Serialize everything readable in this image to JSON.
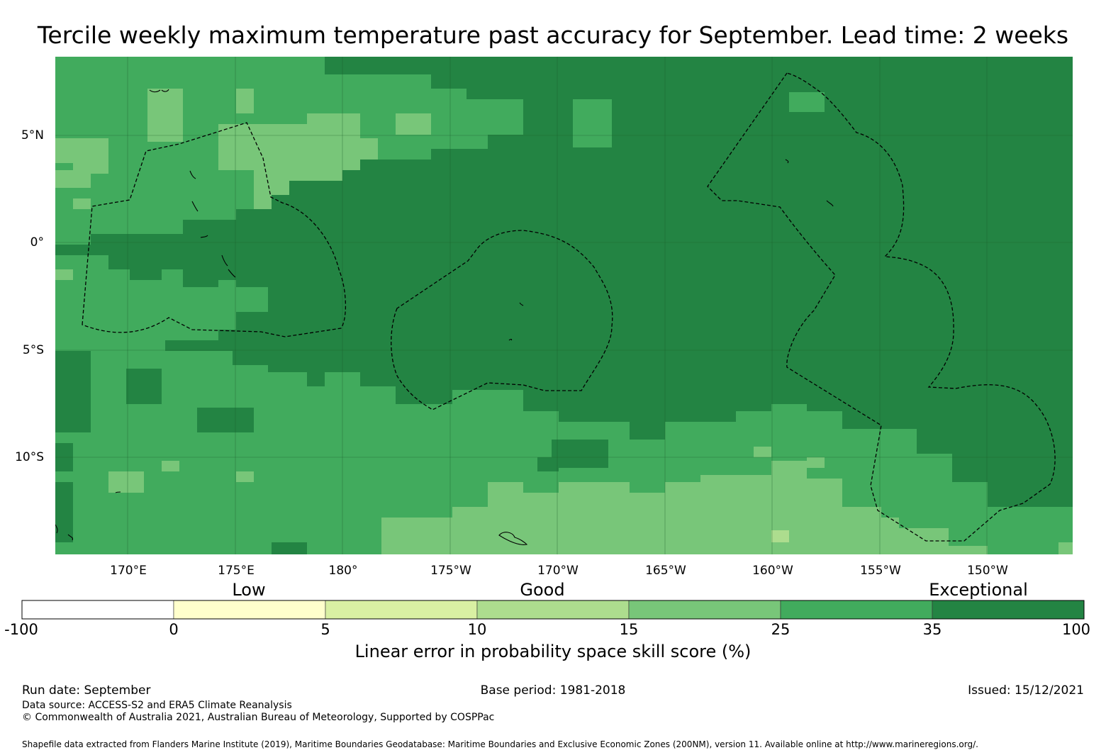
{
  "title": "Tercile weekly maximum temperature past accuracy for September. Lead time: 2 weeks",
  "map": {
    "lat_ticks": [
      "5°N",
      "0°",
      "5°S",
      "10°S"
    ],
    "lon_ticks": [
      "170°E",
      "175°E",
      "180°",
      "175°W",
      "170°W",
      "165°W",
      "160°W",
      "155°W",
      "150°W"
    ],
    "palette": {
      "c25_35": "#41ab5d",
      "c35_100": "#238443",
      "c15_25": "#78c679",
      "c10_15": "#addd8e",
      "eez_line": "#000000",
      "grid_line": "#1a5c2a"
    }
  },
  "colorbar": {
    "categories": [
      "Low",
      "Good",
      "Exceptional"
    ],
    "ticks": [
      "-100",
      "0",
      "5",
      "10",
      "15",
      "25",
      "35",
      "100"
    ],
    "colors": [
      "#ffffff",
      "#ffffcc",
      "#d9f0a3",
      "#addd8e",
      "#78c679",
      "#41ab5d",
      "#238443"
    ],
    "label": "Linear error in probability space skill score (%)"
  },
  "footer": {
    "run_date": "Run date: September",
    "base_period": "Base period: 1981-2018",
    "issued": "Issued: 15/12/2021",
    "data_source": "Data source: ACCESS-S2 and ERA5 Climate Reanalysis",
    "copyright": "© Commonwealth of Australia 2021, Australian Bureau of Meteorology, Supported by COSPPac",
    "shapefile": "Shapefile data extracted from Flanders Marine Institute (2019), Maritime Boundaries Geodatabase: Maritime Boundaries and Exclusive Economic Zones (200NM), version 11. Available online at http://www.marineregions.org/."
  }
}
